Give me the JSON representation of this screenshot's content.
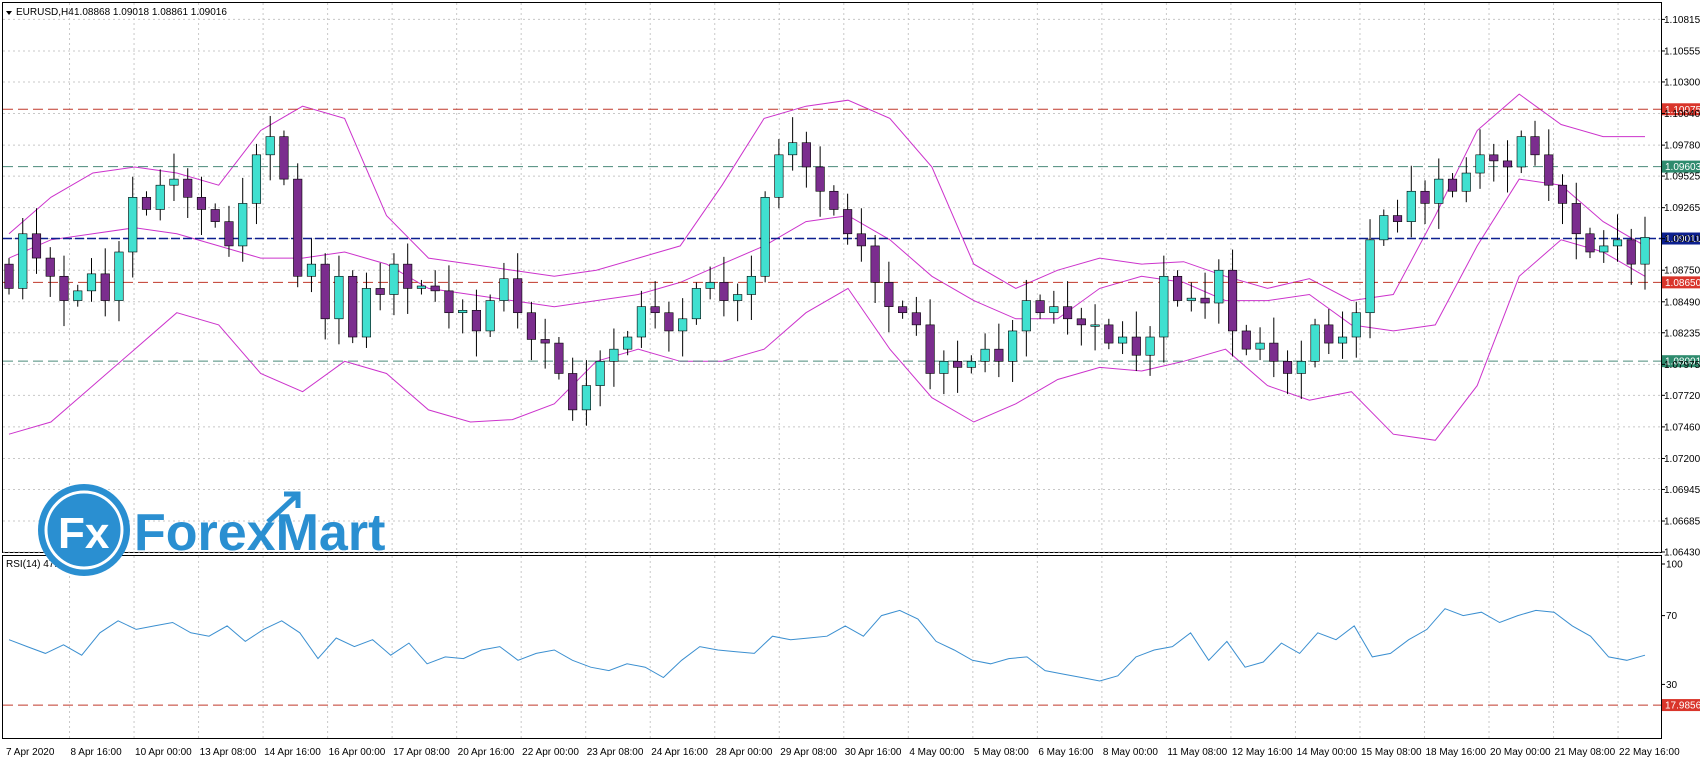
{
  "header": {
    "symbol": "EURUSD,H4",
    "ohlc": "1.08868 1.09018 1.08861 1.09016"
  },
  "logo": {
    "text": "ForexMart",
    "mark": "Fx"
  },
  "colors": {
    "background": "#ffffff",
    "grid": "#c8c8c8",
    "bull_body": "#40e0d0",
    "bear_body": "#7b2d8e",
    "wick": "#000000",
    "bollinger": "#cc33cc",
    "rsi_line": "#3b8fd0",
    "red_dash": "#c0392b",
    "green_dash": "#4a8a7a",
    "blue_dash": "#0c1f8f",
    "tag_red": "#d9352b",
    "tag_green": "#2e8b6e",
    "tag_blue": "#0c1f8f",
    "logo_blue": "#2a8fd1"
  },
  "price_axis": {
    "ticks": [
      "1.10815",
      "1.10555",
      "1.10300",
      "1.10040",
      "1.09780",
      "1.09525",
      "1.09265",
      "1.09010",
      "1.08750",
      "1.08490",
      "1.08235",
      "1.07975",
      "1.07720",
      "1.07460",
      "1.07200",
      "1.06945",
      "1.06685",
      "1.06430"
    ],
    "range": [
      1.0643,
      1.1095
    ]
  },
  "levels": [
    {
      "price": 1.10075,
      "label": "1.10075",
      "style": "red"
    },
    {
      "price": 1.09603,
      "label": "1.09603",
      "style": "green"
    },
    {
      "price": 1.09011,
      "label": "1.09011",
      "style": "blue"
    },
    {
      "price": 1.0865,
      "label": "1.08650",
      "style": "red"
    },
    {
      "price": 1.08001,
      "label": "1.08001",
      "style": "green"
    }
  ],
  "rsi": {
    "title": "RSI(14) 47.2379",
    "ticks": [
      "100",
      "70",
      "30"
    ],
    "level_label": "17.9856",
    "level": 17.9856
  },
  "time_axis": {
    "labels": [
      "7 Apr 2020",
      "8 Apr 16:00",
      "10 Apr 00:00",
      "13 Apr 08:00",
      "14 Apr 16:00",
      "16 Apr 00:00",
      "17 Apr 08:00",
      "20 Apr 16:00",
      "22 Apr 00:00",
      "23 Apr 08:00",
      "24 Apr 16:00",
      "28 Apr 00:00",
      "29 Apr 08:00",
      "30 Apr 16:00",
      "4 May 00:00",
      "5 May 08:00",
      "6 May 16:00",
      "8 May 00:00",
      "11 May 08:00",
      "12 May 16:00",
      "14 May 00:00",
      "15 May 08:00",
      "18 May 16:00",
      "20 May 00:00",
      "21 May 08:00",
      "22 May 16:00"
    ]
  },
  "chart_data": {
    "type": "candlestick",
    "symbol": "EURUSD",
    "timeframe": "H4",
    "ylim": [
      1.0643,
      1.1095
    ],
    "x_labels": [
      "7 Apr 2020",
      "8 Apr 16:00",
      "10 Apr 00:00",
      "13 Apr 08:00",
      "14 Apr 16:00",
      "16 Apr 00:00",
      "17 Apr 08:00",
      "20 Apr 16:00",
      "22 Apr 00:00",
      "23 Apr 08:00",
      "24 Apr 16:00",
      "28 Apr 00:00",
      "29 Apr 08:00",
      "30 Apr 16:00",
      "4 May 00:00",
      "5 May 08:00",
      "6 May 16:00",
      "8 May 00:00",
      "11 May 08:00",
      "12 May 16:00",
      "14 May 00:00",
      "15 May 08:00",
      "18 May 16:00",
      "20 May 00:00",
      "21 May 08:00",
      "22 May 16:00"
    ],
    "close": [
      1.086,
      1.0905,
      1.0885,
      1.087,
      1.085,
      1.0858,
      1.0872,
      1.085,
      1.089,
      1.0935,
      1.0925,
      1.0945,
      1.095,
      1.0935,
      1.0925,
      1.0915,
      1.0895,
      1.093,
      1.097,
      1.0985,
      1.095,
      1.087,
      1.088,
      1.0835,
      1.087,
      1.082,
      1.086,
      1.0855,
      1.088,
      1.086,
      1.0862,
      1.0858,
      1.084,
      1.0842,
      1.0825,
      1.085,
      1.0868,
      1.084,
      1.0818,
      1.0815,
      1.079,
      1.076,
      1.078,
      1.08,
      1.081,
      1.082,
      1.0845,
      1.084,
      1.0825,
      1.0835,
      1.086,
      1.0865,
      1.085,
      1.0855,
      1.087,
      1.0935,
      1.097,
      1.098,
      1.096,
      1.094,
      1.0925,
      1.0905,
      1.0895,
      1.0865,
      1.0845,
      1.084,
      1.083,
      1.079,
      1.08,
      1.0795,
      1.08,
      1.081,
      1.08,
      1.0825,
      1.085,
      1.084,
      1.0845,
      1.0835,
      1.083,
      1.083,
      1.0815,
      1.082,
      1.0805,
      1.082,
      1.087,
      1.085,
      1.0852,
      1.0848,
      1.0875,
      1.0825,
      1.081,
      1.0815,
      1.08,
      1.079,
      1.08,
      1.083,
      1.0815,
      1.082,
      1.084,
      1.09,
      1.092,
      1.0915,
      1.094,
      1.093,
      1.095,
      1.094,
      1.0955,
      1.097,
      1.0965,
      1.096,
      1.0985,
      1.097,
      1.0945,
      1.093,
      1.0905,
      1.089,
      1.0895,
      1.09,
      1.088,
      1.0902
    ],
    "sma20": [
      1.0885,
      1.09,
      1.0905,
      1.091,
      1.0905,
      1.0895,
      1.0885,
      1.0885,
      1.089,
      1.088,
      1.086,
      1.0855,
      1.085,
      1.0845,
      1.085,
      1.0855,
      1.0865,
      1.088,
      1.0895,
      1.0915,
      1.092,
      1.09,
      1.087,
      1.085,
      1.0835,
      1.0835,
      1.086,
      1.087,
      1.0865,
      1.085,
      1.085,
      1.0855,
      1.083,
      1.0825,
      1.083,
      1.0895,
      1.095,
      1.0945,
      1.0915,
      1.0895
    ],
    "bb_upper": [
      1.0905,
      1.0935,
      1.0955,
      1.096,
      1.0955,
      1.0945,
      1.099,
      1.101,
      1.1,
      1.092,
      1.0885,
      1.088,
      1.0875,
      1.087,
      1.0875,
      1.0885,
      1.0895,
      1.0945,
      1.1,
      1.101,
      1.1015,
      1.1,
      1.096,
      1.088,
      1.086,
      1.0875,
      1.0885,
      1.088,
      1.0882,
      1.087,
      1.086,
      1.0868,
      1.085,
      1.0855,
      1.092,
      1.099,
      1.102,
      1.0995,
      1.0985,
      1.0985
    ],
    "bb_lower": [
      1.074,
      1.075,
      1.078,
      1.081,
      1.084,
      1.083,
      1.079,
      1.0775,
      1.08,
      1.079,
      1.076,
      1.075,
      1.0752,
      1.0765,
      1.08,
      1.081,
      1.08,
      1.08,
      1.081,
      1.084,
      1.086,
      1.081,
      1.077,
      1.075,
      1.0765,
      1.0785,
      1.0795,
      1.0792,
      1.08,
      1.081,
      1.078,
      1.0768,
      1.0775,
      1.074,
      1.0735,
      1.078,
      1.087,
      1.09,
      1.089,
      1.087
    ],
    "rsi14": [
      56,
      52,
      48,
      53,
      47,
      60,
      67,
      62,
      64,
      66,
      60,
      58,
      64,
      55,
      62,
      67,
      60,
      45,
      57,
      52,
      56,
      47,
      54,
      42,
      46,
      45,
      50,
      52,
      44,
      48,
      50,
      44,
      40,
      38,
      42,
      40,
      34,
      44,
      52,
      50,
      49,
      48,
      58,
      56,
      57,
      58,
      64,
      58,
      70,
      73,
      68,
      55,
      50,
      44,
      42,
      45,
      46,
      38,
      36,
      34,
      32,
      35,
      46,
      50,
      52,
      60,
      44,
      55,
      40,
      43,
      54,
      48,
      60,
      56,
      64,
      46,
      48,
      56,
      62,
      74,
      70,
      72,
      66,
      70,
      73,
      72,
      64,
      58,
      46,
      44,
      47
    ],
    "levels": [
      1.10075,
      1.09603,
      1.09011,
      1.0865,
      1.08001
    ]
  }
}
